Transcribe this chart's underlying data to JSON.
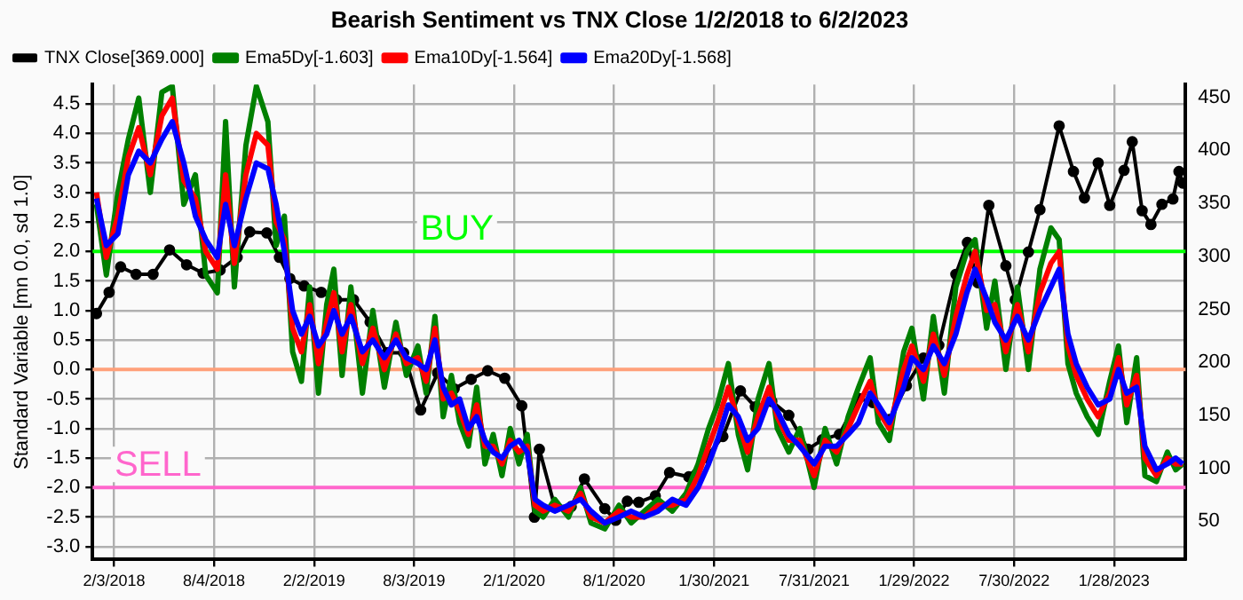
{
  "chart_data": {
    "type": "line",
    "title": "Bearish Sentiment vs TNX Close 1/2/2018 to 6/2/2023",
    "ylabel": "Standard Variable [mn 0.0, sd 1.0]",
    "x": [
      "2018-01-02",
      "2018-01-20",
      "2018-02-10",
      "2018-03-01",
      "2018-03-20",
      "2018-04-10",
      "2018-05-01",
      "2018-05-20",
      "2018-06-10",
      "2018-07-01",
      "2018-07-20",
      "2018-08-10",
      "2018-08-25",
      "2018-09-10",
      "2018-10-01",
      "2018-10-20",
      "2018-11-10",
      "2018-11-25",
      "2018-12-10",
      "2018-12-25",
      "2019-01-10",
      "2019-01-25",
      "2019-02-10",
      "2019-02-25",
      "2019-03-10",
      "2019-03-25",
      "2019-04-10",
      "2019-05-01",
      "2019-05-20",
      "2019-06-10",
      "2019-07-01",
      "2019-07-20",
      "2019-08-10",
      "2019-08-25",
      "2019-09-10",
      "2019-09-25",
      "2019-10-10",
      "2019-10-25",
      "2019-11-10",
      "2019-11-25",
      "2019-12-10",
      "2019-12-25",
      "2020-01-10",
      "2020-01-25",
      "2020-02-10",
      "2020-02-25",
      "2020-03-10",
      "2020-03-25",
      "2020-04-15",
      "2020-05-10",
      "2020-06-01",
      "2020-06-20",
      "2020-07-15",
      "2020-08-10",
      "2020-09-01",
      "2020-09-25",
      "2020-10-20",
      "2020-11-15",
      "2020-12-10",
      "2021-01-01",
      "2021-01-20",
      "2021-02-05",
      "2021-02-25",
      "2021-03-15",
      "2021-04-01",
      "2021-04-20",
      "2021-05-10",
      "2021-05-25",
      "2021-06-15",
      "2021-07-05",
      "2021-07-31",
      "2021-08-20",
      "2021-09-10",
      "2021-10-01",
      "2021-10-20",
      "2021-11-10",
      "2021-11-25",
      "2021-12-15",
      "2022-01-10",
      "2022-01-25",
      "2022-02-15",
      "2022-03-05",
      "2022-03-25",
      "2022-04-15",
      "2022-05-05",
      "2022-05-20",
      "2022-06-10",
      "2022-06-25",
      "2022-07-15",
      "2022-08-05",
      "2022-08-25",
      "2022-09-15",
      "2022-10-05",
      "2022-10-20",
      "2022-11-05",
      "2022-11-20",
      "2022-12-10",
      "2022-12-30",
      "2023-01-20",
      "2023-02-05",
      "2023-02-20",
      "2023-03-10",
      "2023-03-25",
      "2023-04-15",
      "2023-05-05",
      "2023-05-20",
      "2023-06-02"
    ],
    "series": [
      {
        "name": "TNX Close[369.000]",
        "color": "#000000",
        "axis": "y2",
        "marker": "circle",
        "x": [
          "2018-01-02",
          "2018-01-25",
          "2018-02-15",
          "2018-03-15",
          "2018-04-15",
          "2018-05-15",
          "2018-06-15",
          "2018-07-15",
          "2018-08-15",
          "2018-09-15",
          "2018-10-08",
          "2018-11-08",
          "2018-12-01",
          "2018-12-20",
          "2019-01-15",
          "2019-02-15",
          "2019-03-15",
          "2019-04-15",
          "2019-05-15",
          "2019-06-15",
          "2019-07-15",
          "2019-08-15",
          "2019-09-15",
          "2019-10-15",
          "2019-11-15",
          "2019-12-15",
          "2020-01-15",
          "2020-02-15",
          "2020-03-09",
          "2020-03-18",
          "2020-04-15",
          "2020-05-15",
          "2020-06-08",
          "2020-07-15",
          "2020-08-04",
          "2020-08-25",
          "2020-09-15",
          "2020-10-15",
          "2020-11-10",
          "2020-12-15",
          "2021-01-15",
          "2021-02-15",
          "2021-03-19",
          "2021-04-15",
          "2021-05-15",
          "2021-06-15",
          "2021-07-20",
          "2021-08-15",
          "2021-09-15",
          "2021-10-20",
          "2021-11-15",
          "2021-12-15",
          "2022-01-15",
          "2022-02-15",
          "2022-03-15",
          "2022-04-15",
          "2022-05-06",
          "2022-05-25",
          "2022-06-14",
          "2022-07-15",
          "2022-08-01",
          "2022-08-25",
          "2022-09-15",
          "2022-10-20",
          "2022-11-15",
          "2022-12-05",
          "2022-12-30",
          "2023-01-20",
          "2023-02-15",
          "2023-03-02",
          "2023-03-20",
          "2023-04-05",
          "2023-04-25",
          "2023-05-15",
          "2023-05-26",
          "2023-06-02"
        ],
        "values": [
          246,
          266,
          290,
          283,
          283,
          306,
          292,
          284,
          287,
          299,
          323,
          322,
          299,
          279,
          272,
          266,
          259,
          259,
          238,
          209,
          209,
          155,
          190,
          175,
          184,
          192,
          185,
          159,
          54,
          118,
          64,
          64,
          90,
          62,
          51,
          69,
          68,
          74,
          96,
          92,
          110,
          130,
          173,
          158,
          163,
          150,
          118,
          127,
          132,
          166,
          162,
          146,
          178,
          204,
          216,
          283,
          313,
          275,
          348,
          291,
          259,
          304,
          344,
          423,
          380,
          355,
          388,
          348,
          381,
          408,
          343,
          330,
          349,
          354,
          380,
          369
        ]
      },
      {
        "name": "Ema5Dy[-1.603]",
        "color": "#008000",
        "values": [
          2.8,
          1.6,
          3.0,
          3.9,
          4.6,
          3.0,
          4.7,
          4.8,
          2.8,
          3.3,
          1.6,
          1.3,
          4.2,
          1.4,
          3.8,
          4.8,
          4.2,
          2.1,
          2.6,
          0.3,
          -0.2,
          1.4,
          -0.4,
          1.1,
          1.7,
          -0.1,
          1.4,
          -0.4,
          1.0,
          -0.3,
          0.8,
          -0.1,
          0.4,
          -0.4,
          0.9,
          -0.8,
          -0.1,
          -0.9,
          -1.3,
          -0.3,
          -1.6,
          -1.1,
          -1.8,
          -1.0,
          -1.6,
          -1.1,
          -2.4,
          -2.5,
          -2.2,
          -2.5,
          -2.0,
          -2.6,
          -2.7,
          -2.3,
          -2.6,
          -2.4,
          -2.2,
          -2.4,
          -2.1,
          -1.6,
          -1.0,
          -0.6,
          0.1,
          -1.1,
          -1.7,
          -0.5,
          0.1,
          -1.0,
          -1.4,
          -1.0,
          -2.0,
          -1.0,
          -1.6,
          -0.8,
          -0.3,
          0.2,
          -0.9,
          -1.2,
          0.3,
          0.7,
          -0.5,
          0.9,
          -0.4,
          1.4,
          2.0,
          2.2,
          0.7,
          1.5,
          0.0,
          1.4,
          0.0,
          1.7,
          2.4,
          2.2,
          0.1,
          -0.4,
          -0.8,
          -1.1,
          -0.2,
          0.4,
          -0.9,
          0.2,
          -1.8,
          -1.9,
          -1.4,
          -1.7,
          -1.6
        ]
      },
      {
        "name": "Ema10Dy[-1.564]",
        "color": "#ff0000",
        "values": [
          3.0,
          1.9,
          2.6,
          3.6,
          4.1,
          3.3,
          4.3,
          4.6,
          3.2,
          2.9,
          2.0,
          1.7,
          3.3,
          1.8,
          3.3,
          4.0,
          3.8,
          2.5,
          2.2,
          0.7,
          0.3,
          1.1,
          0.1,
          0.8,
          1.3,
          0.3,
          1.1,
          0.1,
          0.7,
          0.0,
          0.6,
          0.1,
          0.2,
          -0.2,
          0.7,
          -0.5,
          -0.4,
          -0.7,
          -1.1,
          -0.6,
          -1.3,
          -1.3,
          -1.6,
          -1.2,
          -1.4,
          -1.3,
          -2.3,
          -2.4,
          -2.3,
          -2.4,
          -2.1,
          -2.5,
          -2.6,
          -2.4,
          -2.5,
          -2.5,
          -2.3,
          -2.3,
          -2.2,
          -1.8,
          -1.3,
          -0.9,
          -0.3,
          -0.9,
          -1.4,
          -0.8,
          -0.3,
          -0.8,
          -1.2,
          -1.2,
          -1.8,
          -1.2,
          -1.4,
          -1.0,
          -0.6,
          -0.2,
          -0.7,
          -1.0,
          0.0,
          0.4,
          -0.2,
          0.6,
          -0.1,
          0.9,
          1.6,
          2.0,
          1.0,
          1.1,
          0.3,
          1.1,
          0.3,
          1.3,
          1.8,
          2.0,
          0.4,
          -0.1,
          -0.5,
          -0.8,
          -0.4,
          0.2,
          -0.6,
          -0.1,
          -1.5,
          -1.8,
          -1.5,
          -1.6,
          -1.6
        ]
      },
      {
        "name": "Ema20Dy[-1.568]",
        "color": "#0000ff",
        "values": [
          2.9,
          2.1,
          2.3,
          3.3,
          3.7,
          3.5,
          3.9,
          4.2,
          3.5,
          2.6,
          2.2,
          1.9,
          2.8,
          2.1,
          2.9,
          3.5,
          3.4,
          2.8,
          2.0,
          1.0,
          0.6,
          0.9,
          0.4,
          0.6,
          1.0,
          0.6,
          0.9,
          0.3,
          0.5,
          0.2,
          0.5,
          0.2,
          0.1,
          0.0,
          0.5,
          -0.3,
          -0.6,
          -0.5,
          -1.0,
          -0.8,
          -1.2,
          -1.4,
          -1.5,
          -1.3,
          -1.2,
          -1.4,
          -2.2,
          -2.3,
          -2.4,
          -2.3,
          -2.2,
          -2.4,
          -2.6,
          -2.5,
          -2.4,
          -2.5,
          -2.4,
          -2.2,
          -2.3,
          -2.0,
          -1.6,
          -1.2,
          -0.6,
          -0.8,
          -1.2,
          -1.0,
          -0.5,
          -0.7,
          -1.1,
          -1.3,
          -1.6,
          -1.3,
          -1.3,
          -1.1,
          -0.9,
          -0.4,
          -0.6,
          -0.9,
          -0.3,
          0.2,
          0.0,
          0.4,
          0.1,
          0.6,
          1.3,
          1.7,
          1.2,
          0.8,
          0.5,
          0.9,
          0.5,
          1.0,
          1.4,
          1.7,
          0.6,
          0.1,
          -0.3,
          -0.6,
          -0.5,
          0.0,
          -0.4,
          -0.3,
          -1.3,
          -1.7,
          -1.6,
          -1.5,
          -1.6
        ]
      }
    ],
    "xlim": [
      "2017-12-26",
      "2023-06-07"
    ],
    "xticks": [
      {
        "value": "2018-02-03",
        "label": "2/3/2018"
      },
      {
        "value": "2018-08-04",
        "label": "8/4/2018"
      },
      {
        "value": "2019-02-02",
        "label": "2/2/2019"
      },
      {
        "value": "2019-08-03",
        "label": "8/3/2019"
      },
      {
        "value": "2020-02-01",
        "label": "2/1/2020"
      },
      {
        "value": "2020-08-01",
        "label": "8/1/2020"
      },
      {
        "value": "2021-01-30",
        "label": "1/30/2021"
      },
      {
        "value": "2021-07-31",
        "label": "7/31/2021"
      },
      {
        "value": "2022-01-29",
        "label": "1/29/2022"
      },
      {
        "value": "2022-07-30",
        "label": "7/30/2022"
      },
      {
        "value": "2023-01-28",
        "label": "1/28/2023"
      }
    ],
    "ylim": [
      -3.22,
      4.83
    ],
    "yticks": [
      {
        "value": -3,
        "label": "-3.0"
      },
      {
        "value": -2.5,
        "label": "-2.5"
      },
      {
        "value": -2,
        "label": "-2.0"
      },
      {
        "value": -1.5,
        "label": "-1.5"
      },
      {
        "value": -1,
        "label": "-1.0"
      },
      {
        "value": -0.5,
        "label": "-0.5"
      },
      {
        "value": 0,
        "label": "0.0"
      },
      {
        "value": 0.5,
        "label": "0.5"
      },
      {
        "value": 1,
        "label": "1.0"
      },
      {
        "value": 1.5,
        "label": "1.5"
      },
      {
        "value": 2,
        "label": "2.0"
      },
      {
        "value": 2.5,
        "label": "2.5"
      },
      {
        "value": 3,
        "label": "3.0"
      },
      {
        "value": 3.5,
        "label": "3.5"
      },
      {
        "value": 4,
        "label": "4.0"
      },
      {
        "value": 4.5,
        "label": "4.5"
      }
    ],
    "y2lim": [
      14,
      462
    ],
    "y2ticks": [
      50,
      100,
      150,
      200,
      250,
      300,
      350,
      400,
      450
    ],
    "ref_lines": [
      {
        "axis": "y",
        "value": 2,
        "label": "BUY",
        "color": "#00ff00"
      },
      {
        "axis": "y",
        "value": 0,
        "color": "#ffa07a"
      },
      {
        "axis": "y",
        "value": -2,
        "label": "SELL",
        "color": "#ff66cc"
      }
    ],
    "grid": true,
    "legend": "top left",
    "marker": "none",
    "line_style": "solid"
  }
}
